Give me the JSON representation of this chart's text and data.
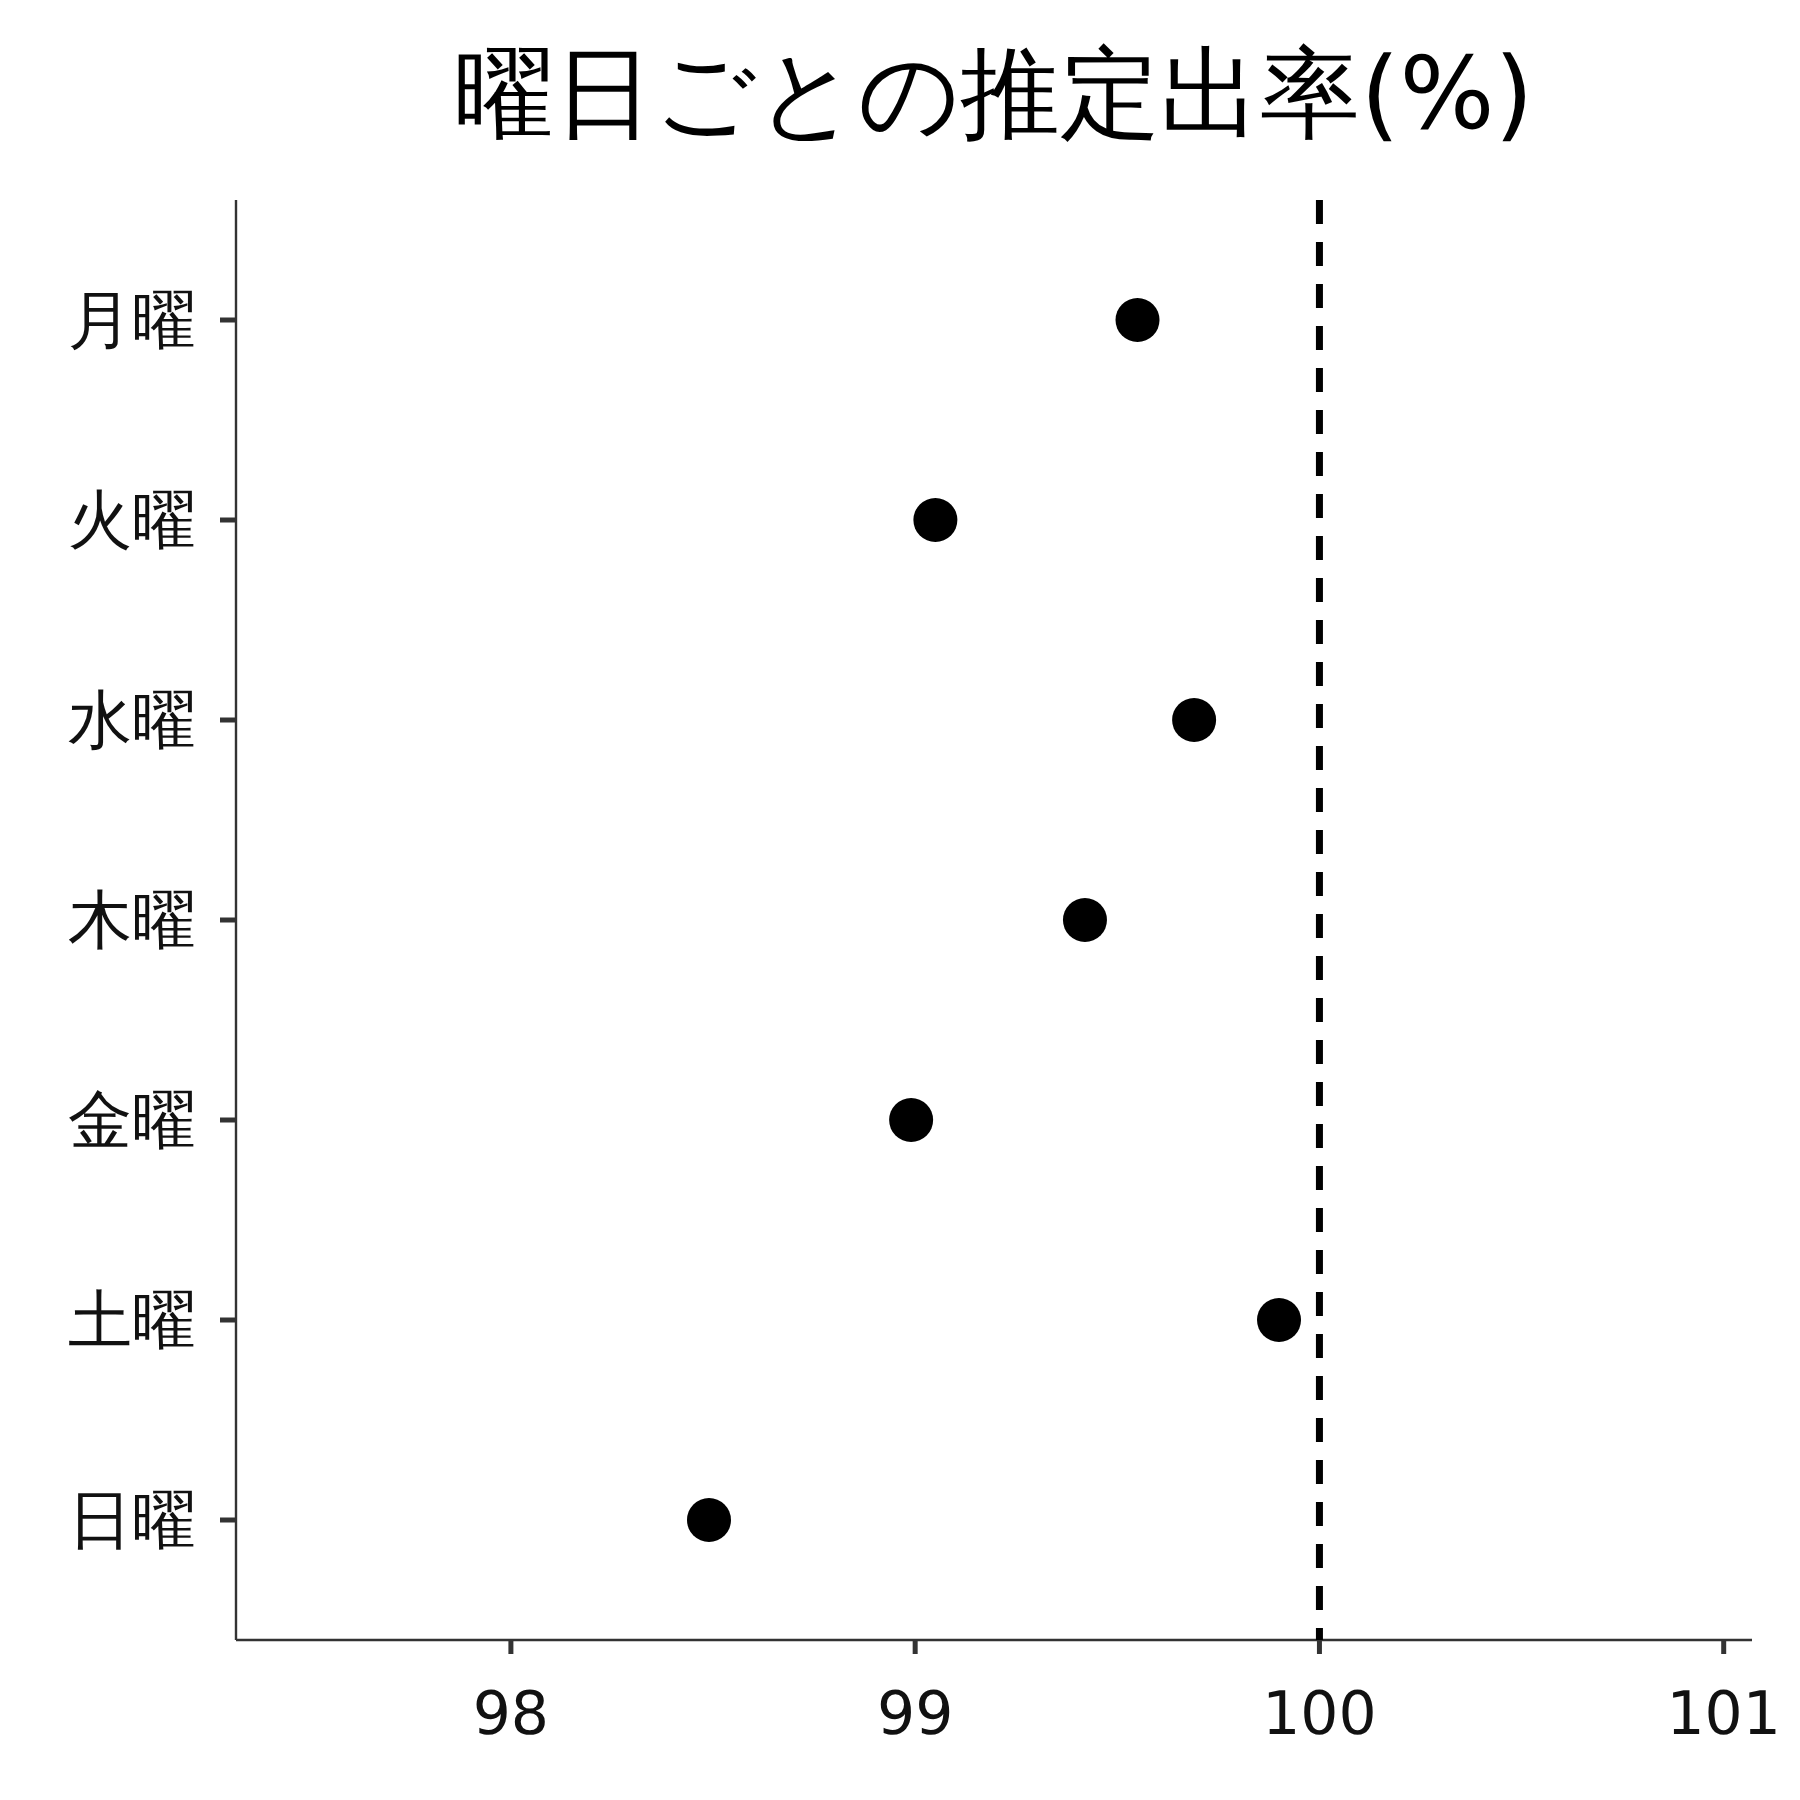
{
  "chart_data": {
    "type": "scatter",
    "title": "曜日ごとの推定出率(%)",
    "orientation": "horizontal",
    "categories": [
      "月曜",
      "火曜",
      "水曜",
      "木曜",
      "金曜",
      "土曜",
      "日曜"
    ],
    "series": [
      {
        "color": "#000000",
        "values": [
          99.55,
          99.05,
          99.69,
          99.42,
          98.99,
          99.9,
          98.49
        ]
      }
    ],
    "xlim": [
      97.32,
      101.07
    ],
    "xticks": [
      98,
      99,
      100,
      101
    ],
    "marker": "circle",
    "grid": false,
    "ref_lines": [
      {
        "axis": "x",
        "value": 100,
        "color": "#000000",
        "line_style": "dashed"
      }
    ]
  }
}
